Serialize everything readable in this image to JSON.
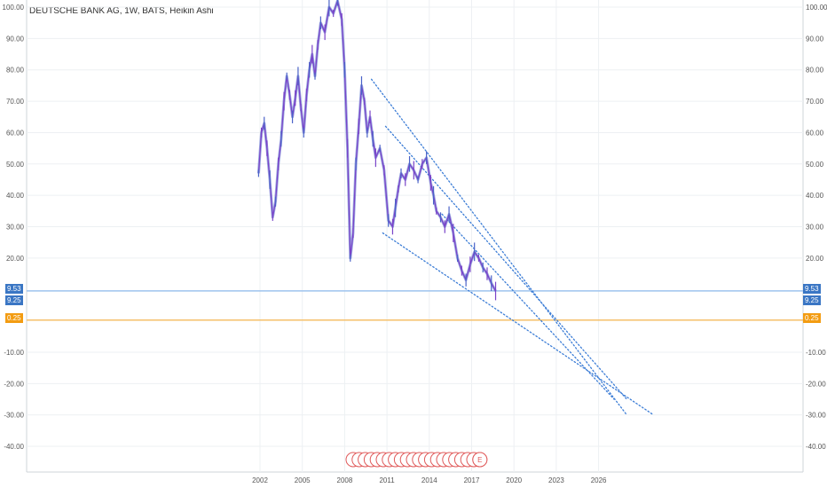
{
  "title": "DEUTSCHE BANK AG, 1W, BATS, Heikin Ashi",
  "colors": {
    "candle_line": "#7a44c9",
    "candle_line2": "#4a62c8",
    "trendline": "#3c7dd6",
    "level_blue": "#9ec3ee",
    "level_orange": "#f5c06a",
    "tag_blue": "#3a76c4",
    "tag_orange": "#f39c12",
    "grid": "#edf0f3",
    "axis_text": "#555555",
    "event_marker": "#e05a5a"
  },
  "price_tags": {
    "upper": "9.53",
    "lower": "9.25",
    "orange": "0.25"
  },
  "event_marker_label": "E",
  "chart_data": {
    "type": "line",
    "ylim": [
      -47,
      101
    ],
    "xlim": [
      1999.0,
      2030.8
    ],
    "y_ticks": [
      "100.00",
      "90.00",
      "80.00",
      "70.00",
      "60.00",
      "50.00",
      "40.00",
      "30.00",
      "20.00",
      "-10.00",
      "-20.00",
      "-30.00",
      "-40.00"
    ],
    "x_ticks": [
      "2002",
      "2005",
      "2008",
      "2011",
      "2014",
      "2017",
      "2020",
      "2023",
      "2026"
    ],
    "horizontal_levels": [
      {
        "value": 9.53,
        "color": "blue"
      },
      {
        "value": 0.25,
        "color": "orange"
      }
    ],
    "series": [
      {
        "x": [
          2001.9,
          2002.1,
          2002.3,
          2002.5,
          2002.7,
          2002.9,
          2003.1,
          2003.3,
          2003.5,
          2003.7,
          2003.9,
          2004.1,
          2004.3,
          2004.5,
          2004.7,
          2004.9,
          2005.1,
          2005.3,
          2005.5,
          2005.7,
          2005.9,
          2006.1,
          2006.3,
          2006.6,
          2006.9,
          2007.2,
          2007.5,
          2007.8,
          2008.0,
          2008.2,
          2008.4,
          2008.6,
          2008.8,
          2009.0,
          2009.2,
          2009.4,
          2009.6,
          2009.8,
          2010.0,
          2010.2,
          2010.5,
          2010.8,
          2011.1,
          2011.4,
          2011.6,
          2011.8,
          2012.0,
          2012.3,
          2012.6,
          2012.9,
          2013.2,
          2013.5,
          2013.8,
          2014.1,
          2014.3,
          2014.5,
          2014.8,
          2015.1,
          2015.4,
          2015.7,
          2016.0,
          2016.3,
          2016.6,
          2016.9,
          2017.2,
          2017.5,
          2017.8,
          2018.1,
          2018.4,
          2018.7
        ],
        "values": [
          47,
          60,
          63,
          55,
          45,
          33,
          38,
          50,
          58,
          70,
          78,
          72,
          65,
          71,
          78,
          68,
          60,
          72,
          80,
          85,
          78,
          88,
          95,
          92,
          100,
          98,
          102,
          96,
          80,
          55,
          20,
          28,
          50,
          62,
          75,
          70,
          60,
          65,
          58,
          52,
          55,
          48,
          32,
          30,
          36,
          42,
          47,
          45,
          50,
          48,
          45,
          50,
          52,
          44,
          40,
          35,
          33,
          30,
          34,
          28,
          20,
          16,
          13,
          18,
          22,
          20,
          17,
          15,
          12,
          9.5
        ]
      }
    ],
    "trendlines": [
      {
        "x": [
          2009.9,
          2028.0
        ],
        "y": [
          77,
          -30
        ]
      },
      {
        "x": [
          2010.9,
          2028.0
        ],
        "y": [
          62,
          -25
        ]
      },
      {
        "x": [
          2014.9,
          2027.1
        ],
        "y": [
          34,
          -25
        ]
      },
      {
        "x": [
          2010.7,
          2029.9
        ],
        "y": [
          28,
          -30
        ]
      }
    ]
  }
}
